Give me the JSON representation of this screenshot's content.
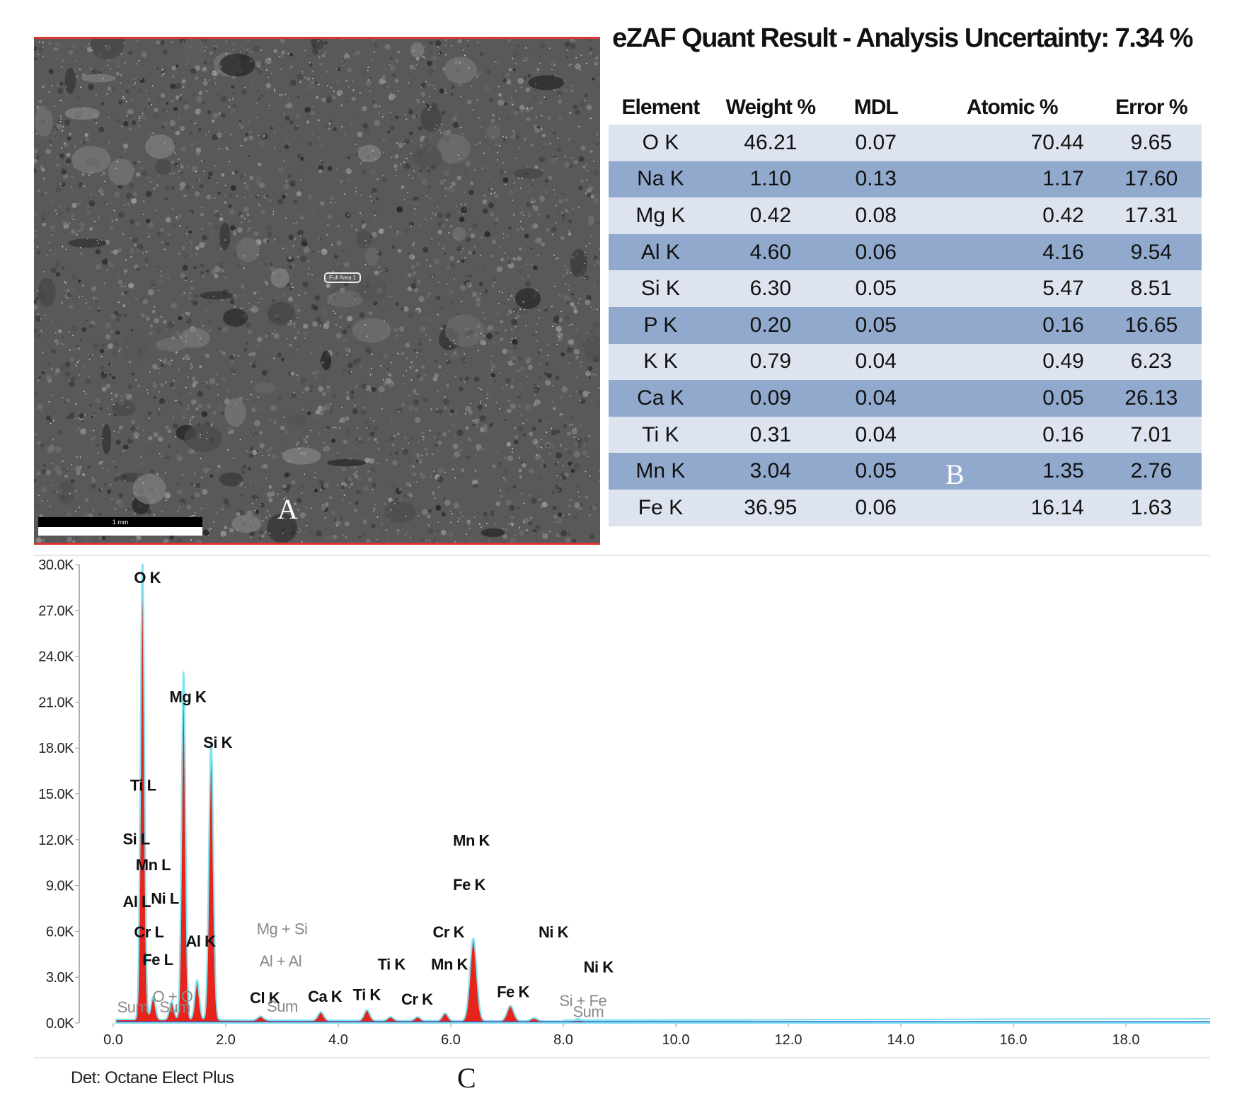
{
  "panel_letters": {
    "a": "A",
    "b": "B",
    "c": "C"
  },
  "micrograph": {
    "area_label": "Full Area 1",
    "scale_bar_text": "1 mm"
  },
  "quant": {
    "title": "eZAF Quant Result - Analysis Uncertainty: 7.34 %",
    "headers": [
      "Element",
      "Weight %",
      "MDL",
      "Atomic %",
      "Error %"
    ],
    "rows": [
      [
        "O  K",
        "46.21",
        "0.07",
        "70.44",
        "9.65"
      ],
      [
        "Na K",
        "1.10",
        "0.13",
        "1.17",
        "17.60"
      ],
      [
        "Mg K",
        "0.42",
        "0.08",
        "0.42",
        "17.31"
      ],
      [
        "Al K",
        "4.60",
        "0.06",
        "4.16",
        "9.54"
      ],
      [
        "Si K",
        "6.30",
        "0.05",
        "5.47",
        "8.51"
      ],
      [
        "P  K",
        "0.20",
        "0.05",
        "0.16",
        "16.65"
      ],
      [
        "K  K",
        "0.79",
        "0.04",
        "0.49",
        "6.23"
      ],
      [
        "Ca K",
        "0.09",
        "0.04",
        "0.05",
        "26.13"
      ],
      [
        "Ti K",
        "0.31",
        "0.04",
        "0.16",
        "7.01"
      ],
      [
        "Mn K",
        "3.04",
        "0.05",
        "1.35",
        "2.76"
      ],
      [
        "Fe K",
        "36.95",
        "0.06",
        "16.14",
        "1.63"
      ]
    ],
    "row_colors": [
      "#dde4ef",
      "#91a9cc"
    ]
  },
  "detector_label": "Det: Octane Elect Plus",
  "chart_data": {
    "type": "line",
    "title": "",
    "xlabel": "",
    "ylabel": "",
    "xlim": [
      0,
      20
    ],
    "ylim": [
      0,
      30000
    ],
    "x_ticks": [
      0,
      2,
      4,
      6,
      8,
      10,
      12,
      14,
      16,
      18
    ],
    "x_tick_labels": [
      "0.0",
      "2.0",
      "4.0",
      "6.0",
      "8.0",
      "10.0",
      "12.0",
      "14.0",
      "16.0",
      "18.0"
    ],
    "y_ticks": [
      0,
      3000,
      6000,
      9000,
      12000,
      15000,
      18000,
      21000,
      24000,
      27000,
      30000
    ],
    "y_tick_labels": [
      "0.0K",
      "3.0K",
      "6.0K",
      "9.0K",
      "12.0K",
      "15.0K",
      "18.0K",
      "21.0K",
      "24.0K",
      "27.0K",
      "30.0K"
    ],
    "colors": {
      "fill": "#e8231b",
      "outline": "#7fe3f0",
      "baseline": "#3a5bd0"
    },
    "background_counts": 200,
    "peaks": [
      {
        "energy": 0.52,
        "counts": 30000,
        "width": 0.035
      },
      {
        "energy": 1.25,
        "counts": 22800,
        "width": 0.035
      },
      {
        "energy": 1.74,
        "counts": 18200,
        "width": 0.04
      },
      {
        "energy": 1.49,
        "counts": 2600,
        "width": 0.04
      },
      {
        "energy": 1.04,
        "counts": 1200,
        "width": 0.04
      },
      {
        "energy": 0.71,
        "counts": 1500,
        "width": 0.04
      },
      {
        "energy": 2.62,
        "counts": 250,
        "width": 0.05
      },
      {
        "energy": 3.69,
        "counts": 550,
        "width": 0.05
      },
      {
        "energy": 4.51,
        "counts": 700,
        "width": 0.05
      },
      {
        "energy": 4.93,
        "counts": 250,
        "width": 0.05
      },
      {
        "energy": 5.41,
        "counts": 250,
        "width": 0.05
      },
      {
        "energy": 5.9,
        "counts": 500,
        "width": 0.05
      },
      {
        "energy": 6.4,
        "counts": 5400,
        "width": 0.06
      },
      {
        "energy": 7.06,
        "counts": 1000,
        "width": 0.06
      },
      {
        "energy": 7.48,
        "counts": 200,
        "width": 0.06
      },
      {
        "energy": 8.26,
        "counts": 150,
        "width": 0.06
      }
    ],
    "peak_labels": [
      {
        "text": "O  K",
        "energy": 0.37,
        "counts": 28800,
        "muted": false
      },
      {
        "text": "Mg K",
        "energy": 1.0,
        "counts": 21000,
        "muted": false
      },
      {
        "text": "Si K",
        "energy": 1.6,
        "counts": 18000,
        "muted": false
      },
      {
        "text": "Ti L",
        "energy": 0.3,
        "counts": 15200,
        "muted": false
      },
      {
        "text": "Si L",
        "energy": 0.17,
        "counts": 11700,
        "muted": false
      },
      {
        "text": "Mn L",
        "energy": 0.4,
        "counts": 10000,
        "muted": false
      },
      {
        "text": "Al L",
        "energy": 0.17,
        "counts": 7600,
        "muted": false
      },
      {
        "text": "Ni L",
        "energy": 0.67,
        "counts": 7800,
        "muted": false
      },
      {
        "text": "Cr L",
        "energy": 0.37,
        "counts": 5600,
        "muted": false
      },
      {
        "text": "Fe L",
        "energy": 0.52,
        "counts": 3800,
        "muted": false
      },
      {
        "text": "Al K",
        "energy": 1.29,
        "counts": 5000,
        "muted": false
      },
      {
        "text": "Mg + Si",
        "energy": 2.55,
        "counts": 5800,
        "muted": true
      },
      {
        "text": "Al + Al",
        "energy": 2.6,
        "counts": 3700,
        "muted": true
      },
      {
        "text": "O  + O",
        "energy": 0.7,
        "counts": 1400,
        "muted": true
      },
      {
        "text": "Sum",
        "energy": 0.07,
        "counts": 700,
        "muted": true
      },
      {
        "text": "Sum",
        "energy": 0.82,
        "counts": 700,
        "muted": true
      },
      {
        "text": "Cl K",
        "energy": 2.43,
        "counts": 1300,
        "muted": false
      },
      {
        "text": "Sum",
        "energy": 2.73,
        "counts": 750,
        "muted": true
      },
      {
        "text": "Ca K",
        "energy": 3.46,
        "counts": 1400,
        "muted": false
      },
      {
        "text": "Ti K",
        "energy": 4.26,
        "counts": 1500,
        "muted": false
      },
      {
        "text": "Ti K",
        "energy": 4.7,
        "counts": 3500,
        "muted": false
      },
      {
        "text": "Cr K",
        "energy": 5.12,
        "counts": 1200,
        "muted": false
      },
      {
        "text": "Mn K",
        "energy": 5.65,
        "counts": 3500,
        "muted": false
      },
      {
        "text": "Cr K",
        "energy": 5.68,
        "counts": 5600,
        "muted": false
      },
      {
        "text": "Mn K",
        "energy": 6.04,
        "counts": 11600,
        "muted": false
      },
      {
        "text": "Fe K",
        "energy": 6.04,
        "counts": 8700,
        "muted": false
      },
      {
        "text": "Fe K",
        "energy": 6.82,
        "counts": 1700,
        "muted": false
      },
      {
        "text": "Ni K",
        "energy": 7.56,
        "counts": 5600,
        "muted": false
      },
      {
        "text": "Ni K",
        "energy": 8.36,
        "counts": 3300,
        "muted": false
      },
      {
        "text": "Si + Fe",
        "energy": 7.93,
        "counts": 1100,
        "muted": true
      },
      {
        "text": "Sum",
        "energy": 8.17,
        "counts": 400,
        "muted": true
      }
    ]
  }
}
